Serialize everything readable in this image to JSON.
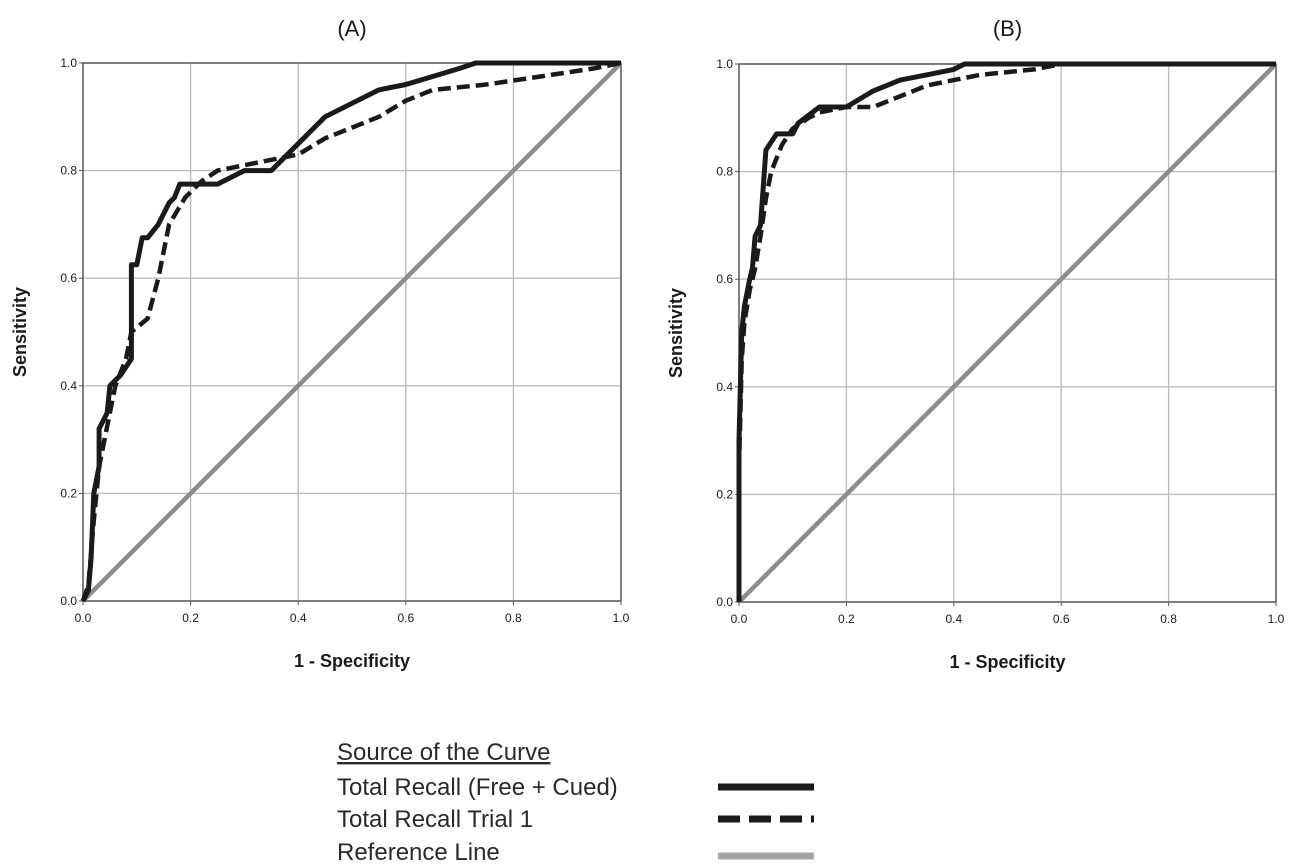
{
  "legend": {
    "title": "Source of the Curve",
    "items": [
      {
        "label": "Total Recall (Free + Cued)",
        "style": "solid",
        "color": "#1a1a1a"
      },
      {
        "label": "Total Recall Trial 1",
        "style": "dashed",
        "color": "#1a1a1a"
      },
      {
        "label": "Reference Line",
        "style": "reference",
        "color": "#a6a6a6"
      }
    ]
  },
  "chart_data": [
    {
      "type": "line",
      "title": "(A)",
      "xlabel": "1 - Specificity",
      "ylabel": "Sensitivity",
      "xlim": [
        0,
        1
      ],
      "ylim": [
        0,
        1
      ],
      "xticks": [
        "0.0",
        "0.2",
        "0.4",
        "0.6",
        "0.8",
        "1.0"
      ],
      "yticks": [
        "0.0",
        "0.2",
        "0.4",
        "0.6",
        "0.8",
        "1.0"
      ],
      "grid": true,
      "series": [
        {
          "name": "Total Recall (Free + Cued)",
          "style": "solid",
          "points": [
            [
              0,
              0
            ],
            [
              0.01,
              0.02
            ],
            [
              0.015,
              0.08
            ],
            [
              0.02,
              0.2
            ],
            [
              0.03,
              0.25
            ],
            [
              0.03,
              0.32
            ],
            [
              0.04,
              0.34
            ],
            [
              0.045,
              0.35
            ],
            [
              0.05,
              0.4
            ],
            [
              0.07,
              0.42
            ],
            [
              0.09,
              0.45
            ],
            [
              0.09,
              0.625
            ],
            [
              0.1,
              0.625
            ],
            [
              0.105,
              0.65
            ],
            [
              0.11,
              0.675
            ],
            [
              0.12,
              0.675
            ],
            [
              0.14,
              0.7
            ],
            [
              0.16,
              0.74
            ],
            [
              0.17,
              0.75
            ],
            [
              0.18,
              0.775
            ],
            [
              0.25,
              0.775
            ],
            [
              0.3,
              0.8
            ],
            [
              0.35,
              0.8
            ],
            [
              0.37,
              0.82
            ],
            [
              0.4,
              0.85
            ],
            [
              0.45,
              0.9
            ],
            [
              0.5,
              0.925
            ],
            [
              0.55,
              0.95
            ],
            [
              0.6,
              0.96
            ],
            [
              0.65,
              0.975
            ],
            [
              0.7,
              0.99
            ],
            [
              0.73,
              1.0
            ],
            [
              0.8,
              1.0
            ],
            [
              0.9,
              1.0
            ],
            [
              1.0,
              1.0
            ]
          ]
        },
        {
          "name": "Total Recall Trial 1",
          "style": "dashed",
          "points": [
            [
              0,
              0
            ],
            [
              0.01,
              0.03
            ],
            [
              0.02,
              0.15
            ],
            [
              0.03,
              0.25
            ],
            [
              0.04,
              0.3
            ],
            [
              0.06,
              0.4
            ],
            [
              0.08,
              0.45
            ],
            [
              0.09,
              0.5
            ],
            [
              0.12,
              0.525
            ],
            [
              0.14,
              0.6
            ],
            [
              0.16,
              0.7
            ],
            [
              0.19,
              0.75
            ],
            [
              0.22,
              0.78
            ],
            [
              0.25,
              0.8
            ],
            [
              0.3,
              0.81
            ],
            [
              0.35,
              0.82
            ],
            [
              0.4,
              0.83
            ],
            [
              0.45,
              0.86
            ],
            [
              0.5,
              0.88
            ],
            [
              0.55,
              0.9
            ],
            [
              0.6,
              0.93
            ],
            [
              0.65,
              0.95
            ],
            [
              0.75,
              0.96
            ],
            [
              0.85,
              0.975
            ],
            [
              0.95,
              0.99
            ],
            [
              1.0,
              1.0
            ]
          ]
        },
        {
          "name": "Reference Line",
          "style": "reference",
          "points": [
            [
              0,
              0
            ],
            [
              1,
              1
            ]
          ]
        }
      ]
    },
    {
      "type": "line",
      "title": "(B)",
      "xlabel": "1 - Specificity",
      "ylabel": "Sensitivity",
      "xlim": [
        0,
        1
      ],
      "ylim": [
        0,
        1
      ],
      "xticks": [
        "0.0",
        "0.2",
        "0.4",
        "0.6",
        "0.8",
        "1.0"
      ],
      "yticks": [
        "0.0",
        "0.2",
        "0.4",
        "0.6",
        "0.8",
        "1.0"
      ],
      "grid": true,
      "series": [
        {
          "name": "Total Recall (Free + Cued)",
          "style": "solid",
          "points": [
            [
              0,
              0
            ],
            [
              0,
              0.3
            ],
            [
              0.005,
              0.5
            ],
            [
              0.01,
              0.55
            ],
            [
              0.02,
              0.6
            ],
            [
              0.025,
              0.62
            ],
            [
              0.03,
              0.68
            ],
            [
              0.04,
              0.7
            ],
            [
              0.05,
              0.84
            ],
            [
              0.07,
              0.87
            ],
            [
              0.1,
              0.87
            ],
            [
              0.11,
              0.89
            ],
            [
              0.15,
              0.92
            ],
            [
              0.2,
              0.92
            ],
            [
              0.25,
              0.95
            ],
            [
              0.3,
              0.97
            ],
            [
              0.35,
              0.98
            ],
            [
              0.4,
              0.99
            ],
            [
              0.42,
              1.0
            ],
            [
              0.5,
              1.0
            ],
            [
              0.6,
              1.0
            ],
            [
              1.0,
              1.0
            ]
          ]
        },
        {
          "name": "Total Recall Trial 1",
          "style": "dashed",
          "points": [
            [
              0,
              0
            ],
            [
              0,
              0.25
            ],
            [
              0.005,
              0.45
            ],
            [
              0.01,
              0.52
            ],
            [
              0.02,
              0.58
            ],
            [
              0.03,
              0.62
            ],
            [
              0.04,
              0.68
            ],
            [
              0.05,
              0.75
            ],
            [
              0.06,
              0.8
            ],
            [
              0.08,
              0.85
            ],
            [
              0.1,
              0.88
            ],
            [
              0.13,
              0.9
            ],
            [
              0.15,
              0.91
            ],
            [
              0.2,
              0.92
            ],
            [
              0.25,
              0.92
            ],
            [
              0.3,
              0.94
            ],
            [
              0.35,
              0.96
            ],
            [
              0.4,
              0.97
            ],
            [
              0.45,
              0.98
            ],
            [
              0.55,
              0.99
            ],
            [
              0.6,
              1.0
            ],
            [
              1.0,
              1.0
            ]
          ]
        },
        {
          "name": "Reference Line",
          "style": "reference",
          "points": [
            [
              0,
              0
            ],
            [
              1,
              1
            ]
          ]
        }
      ]
    }
  ]
}
